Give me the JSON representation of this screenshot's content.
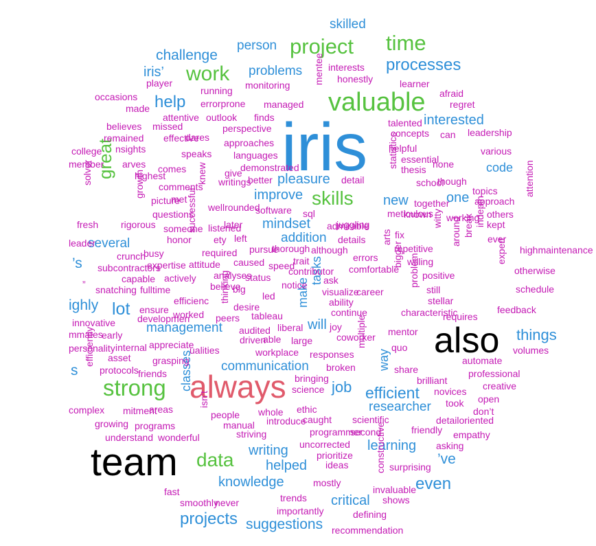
{
  "colors": {
    "black": "#000000",
    "red": "#e05a6b",
    "green": "#56c23f",
    "blue": "#2e8fd8",
    "magenta": "#c419b4"
  },
  "words": [
    "iris",
    "also",
    "team",
    "always",
    "valuable",
    "project",
    "time",
    "work",
    "skills",
    "strong",
    "data",
    "great",
    "processes",
    "interested",
    "efficient",
    "researcher",
    "job",
    "communication",
    "management",
    "mindset",
    "pleasure",
    "improve",
    "several",
    "lot",
    "help",
    "problems",
    "challenge",
    "person",
    "skilled",
    "iris’",
    "code",
    "one",
    "new",
    "addition",
    "make",
    "tasks",
    "will",
    "classes",
    "way",
    "learning",
    "writing",
    "helped",
    "knowledge",
    "projects",
    "suggestions",
    "critical",
    "even",
    "things",
    "’s",
    "ighly",
    "’ve",
    "s",
    "player",
    "occasions",
    "running",
    "monitoring",
    "honestly",
    "learner",
    "interests",
    "afraid",
    "regret",
    "made",
    "errorprone",
    "managed",
    "mentee",
    "attentive",
    "outlook",
    "finds",
    "talented",
    "concepts",
    "leadership",
    "believes",
    "missed",
    "perspective",
    "can",
    "remained",
    "effective",
    "dares",
    "helpful",
    "various",
    "college",
    "nsights",
    "approaches",
    "essential",
    "none",
    "member",
    "arves",
    "speaks",
    "languages",
    "statistics",
    "thesis",
    "comes",
    "demonstrated",
    "highest",
    "give",
    "school",
    "though",
    "comments",
    "writings",
    "better",
    "detail",
    "topics",
    "solver",
    "picture",
    "met",
    "knew",
    "wellrounded",
    "approach",
    "attention",
    "growth",
    "questions",
    "software",
    "together",
    "others",
    "fresh",
    "rigorous",
    "sql",
    "meticulous",
    "known",
    "working",
    "kept",
    "someone",
    "later",
    "juggling",
    "successful",
    "honor",
    "listened",
    "fix",
    "witty",
    "leader",
    "ety",
    "left",
    "details",
    "crunch",
    "busy",
    "thorough",
    "pursue",
    "ever",
    "repetitive",
    "around",
    "break",
    "indepth",
    "highmaintenance",
    "although",
    "required",
    "errors",
    "arts",
    "subcontractors",
    "expertise",
    "attitude",
    "caused",
    "speed",
    "trait",
    "contributor",
    "comfortable",
    "willing",
    "positive",
    "otherwise",
    "capable",
    "actively",
    "analyses",
    "status",
    "bigger",
    "problem",
    "expert",
    "snatching",
    "fulltime",
    "believe",
    "big",
    "notice",
    "ask",
    "visualize",
    "career",
    "still",
    "schedule",
    "efficienc",
    "thinking",
    "led",
    "ability",
    "stellar",
    "ensure",
    "desire",
    "feedback",
    "developmen",
    "worked",
    "peers",
    "tableau",
    "continue",
    "characteristic",
    "requires",
    "innovative",
    "mmates",
    "early",
    "audited",
    "liberal",
    "joy",
    "mentor",
    "appreciate",
    "internal",
    "driven",
    "able",
    "large",
    "coworker",
    "quo",
    "personality",
    "ualities",
    "workplace",
    "multiple",
    "volumes",
    "asset",
    "grasping",
    "responses",
    "automate",
    "efficiently",
    "protocols",
    "friends",
    "broken",
    "share",
    "professional",
    "bringing",
    "brilliant",
    "creative",
    "science",
    "novices",
    "complex",
    "mitment",
    "areas",
    "whole",
    "took",
    "open",
    "growing",
    "isn’t",
    "people",
    "introduce",
    "don’t",
    "programs",
    "manual",
    "ethic",
    "detailoriented",
    "caught",
    "scientific",
    "understand",
    "wonderful",
    "striving",
    "programmer",
    "second",
    "friendly",
    "empathy",
    "uncorrected",
    "asking",
    "prioritize",
    "ideas",
    "surprising",
    "mostly",
    "constructive",
    "fast",
    "invaluable",
    "trends",
    "shows",
    "smoothly",
    "never",
    "importantly",
    "defining",
    "recommendation",
    "admirable",
    "”",
    "\""
  ]
}
